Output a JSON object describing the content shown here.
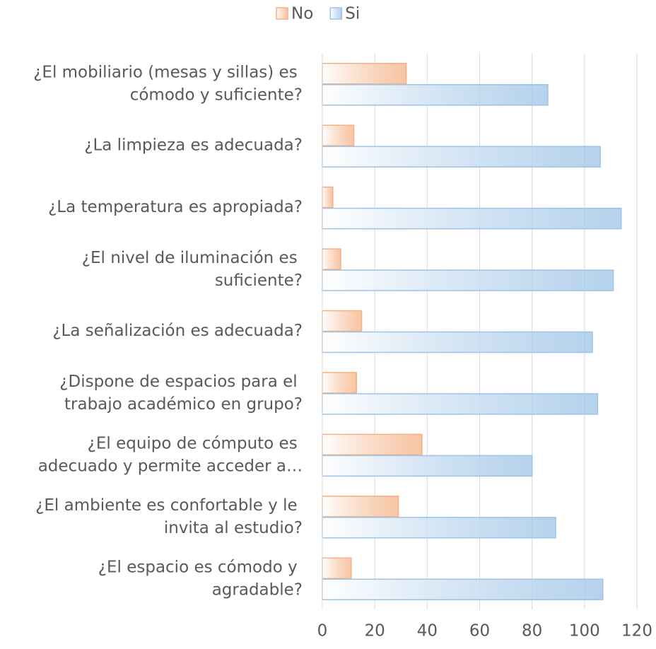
{
  "chart_data": {
    "type": "hbar",
    "categories": [
      "¿El mobiliario (mesas y sillas) es\ncómodo y suficiente?",
      "¿La limpieza es adecuada?",
      "¿La temperatura es apropiada?",
      "¿El nivel de iluminación es\nsuficiente?",
      "¿La señalización es adecuada?",
      "¿Dispone de espacios para el\ntrabajo académico en grupo?",
      "¿El equipo de cómputo es\nadecuado y permite acceder a…",
      "¿El ambiente es confortable y le\ninvita al estudio?",
      "¿El espacio es cómodo y\nagradable?"
    ],
    "series": [
      {
        "name": "No",
        "color": "#f4b183",
        "values": [
          32,
          12,
          4,
          7,
          15,
          13,
          38,
          29,
          11
        ]
      },
      {
        "name": "Si",
        "color": "#9dc3e6",
        "values": [
          86,
          106,
          114,
          111,
          103,
          105,
          80,
          89,
          107
        ]
      }
    ],
    "xlim": [
      0,
      120
    ],
    "xticks": [
      0,
      20,
      40,
      60,
      80,
      100,
      120
    ],
    "grid": true,
    "legend": "top"
  }
}
